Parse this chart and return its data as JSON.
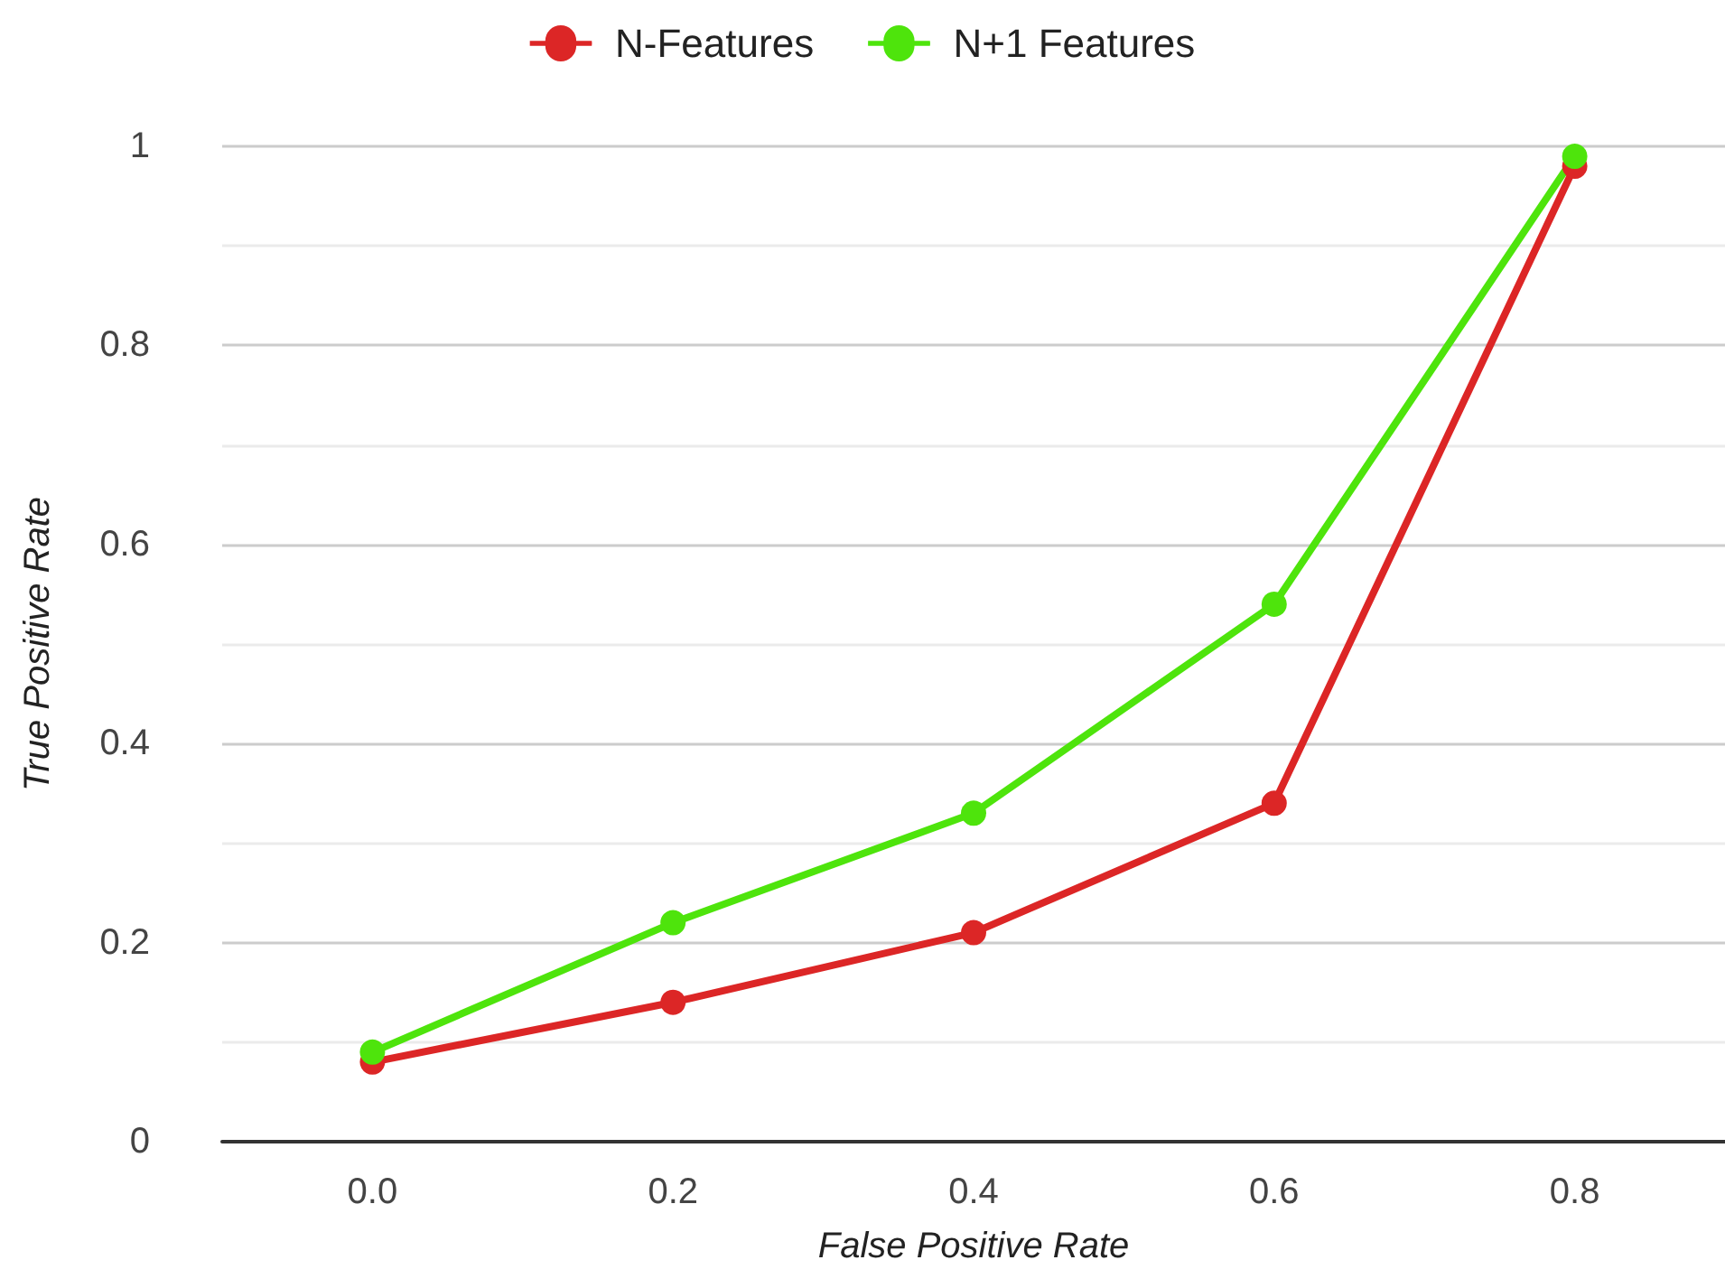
{
  "chart_data": {
    "type": "line",
    "xlabel": "False Positive Rate",
    "ylabel": "True Positive Rate",
    "categories": [
      "0.0",
      "0.2",
      "0.4",
      "0.6",
      "0.8"
    ],
    "series": [
      {
        "name": "N-Features",
        "color": "#dc2626",
        "values": [
          0.08,
          0.14,
          0.21,
          0.34,
          0.98
        ]
      },
      {
        "name": "N+1 Features",
        "color": "#4ee40c",
        "values": [
          0.09,
          0.22,
          0.33,
          0.54,
          0.99
        ]
      }
    ],
    "ylim": [
      0,
      1
    ],
    "yticks": [
      0,
      {
        "value": 0.1,
        "label": null
      },
      0.2,
      {
        "value": 0.3,
        "label": null
      },
      0.4,
      {
        "value": 0.5,
        "label": null
      },
      0.6,
      {
        "value": 0.7,
        "label": null
      },
      0.8,
      {
        "value": 0.9,
        "label": null
      },
      1
    ],
    "grid": "y",
    "legend": "top",
    "marker": "circle",
    "line_style": "solid"
  }
}
